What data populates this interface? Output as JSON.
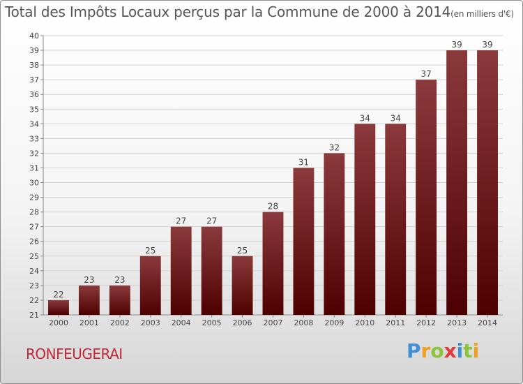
{
  "page": {
    "title": "Total des Impôts Locaux perçus par la Commune de 2000 à 2014",
    "unit": "(en milliers d'€)",
    "commune": "RONFEUGERAI",
    "logo_letters": [
      "P",
      "r",
      "o",
      "x",
      "i",
      "t",
      "i"
    ]
  },
  "colors": {
    "bar_top": "#8b3a3c",
    "bar_bottom": "#4e0000",
    "commune": "#c0283a",
    "logo": [
      "#3f8fd6",
      "#f0a020",
      "#8cc43c",
      "#e23a3a",
      "#3f8fd6",
      "#8cc43c",
      "#f0a020"
    ]
  },
  "chart_data": {
    "type": "bar",
    "title": "Total des Impôts Locaux perçus par la Commune de 2000 à 2014",
    "xlabel": "",
    "ylabel": "",
    "categories": [
      "2000",
      "2001",
      "2002",
      "2003",
      "2004",
      "2005",
      "2006",
      "2007",
      "2008",
      "2009",
      "2010",
      "2011",
      "2012",
      "2013",
      "2014"
    ],
    "values": [
      22,
      23,
      23,
      25,
      27,
      27,
      25,
      28,
      31,
      32,
      34,
      34,
      37,
      39,
      39
    ],
    "ylim": [
      21,
      40
    ],
    "yticks": [
      21,
      22,
      23,
      24,
      25,
      26,
      27,
      28,
      29,
      30,
      31,
      32,
      33,
      34,
      35,
      36,
      37,
      38,
      39,
      40
    ],
    "grid": true
  }
}
